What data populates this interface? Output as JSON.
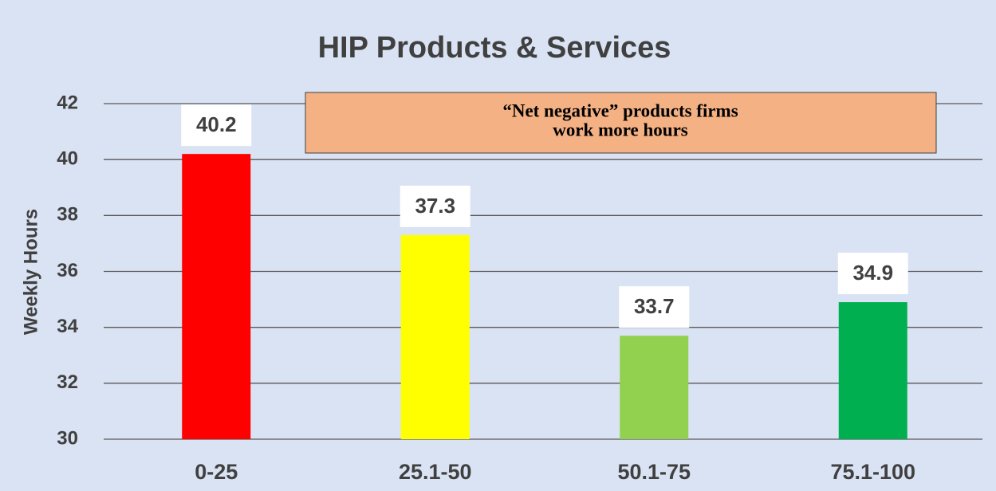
{
  "chart_data": {
    "type": "bar",
    "title": "HIP Products & Services",
    "y_label": "Weekly Hours",
    "categories": [
      "0-25",
      "25.1-50",
      "50.1-75",
      "75.1-100"
    ],
    "values": [
      40.2,
      37.3,
      33.7,
      34.9
    ],
    "colors": [
      "#ff0000",
      "#ffff00",
      "#92d050",
      "#00b050"
    ],
    "ylim": [
      30,
      42
    ],
    "yticks": [
      30,
      32,
      34,
      36,
      38,
      40,
      42
    ],
    "grid": true,
    "annotation": [
      "“Net negative” products firms",
      "work more hours"
    ]
  }
}
